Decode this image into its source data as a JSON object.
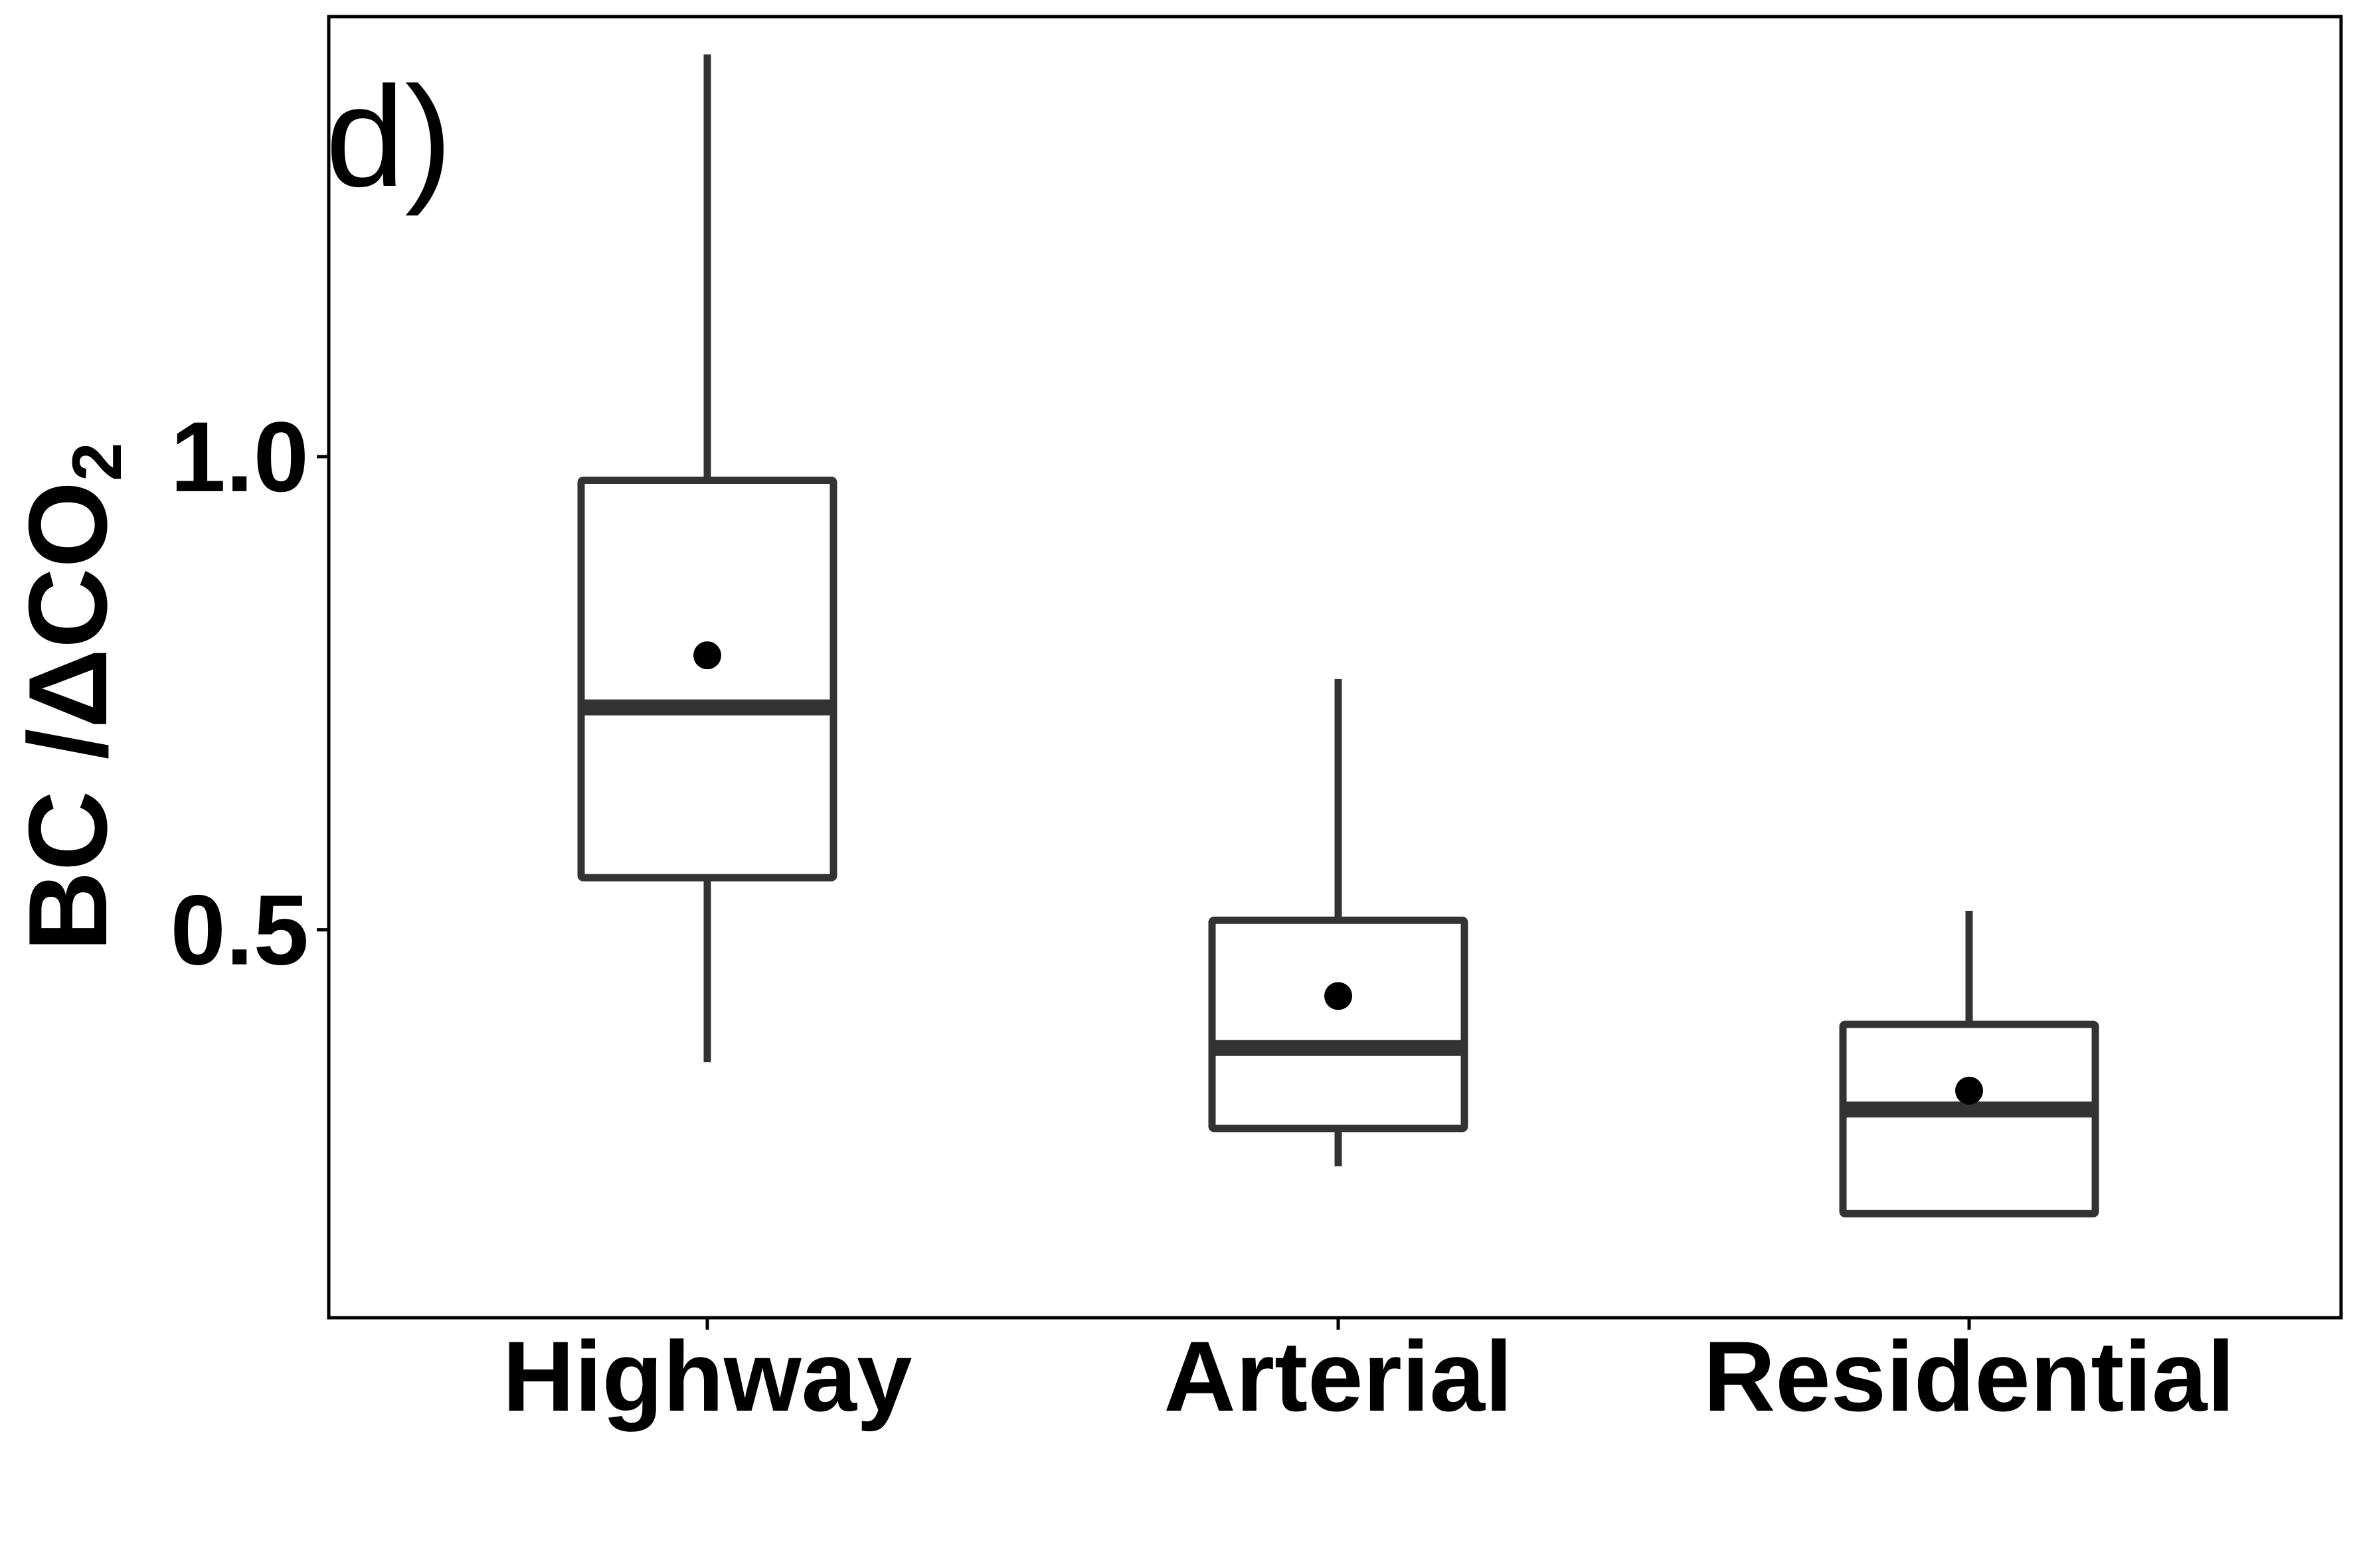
{
  "chart_data": {
    "type": "box",
    "panel_label": "d)",
    "ylabel": {
      "main": "BC /ΔCO",
      "subscript": "2"
    },
    "xlabel": "",
    "categories": [
      "Highway",
      "Arterial",
      "Residential"
    ],
    "y_ticks": [
      {
        "value": 0.5,
        "label": "0.5"
      },
      {
        "value": 1.0,
        "label": "1.0"
      }
    ],
    "ylim": [
      0.09,
      1.465
    ],
    "grid": false,
    "legend": "none",
    "boxes": [
      {
        "category": "Highway",
        "whisker_low": 0.36,
        "q1": 0.555,
        "median": 0.735,
        "q3": 0.975,
        "whisker_high": 1.425,
        "mean": 0.79
      },
      {
        "category": "Arterial",
        "whisker_low": 0.25,
        "q1": 0.29,
        "median": 0.375,
        "q3": 0.51,
        "whisker_high": 0.765,
        "mean": 0.43
      },
      {
        "category": "Residential",
        "whisker_low": 0.2,
        "q1": 0.2,
        "median": 0.31,
        "q3": 0.4,
        "whisker_high": 0.52,
        "mean": 0.33
      }
    ],
    "colors": {
      "box_stroke": "#333333",
      "median": "#333333",
      "mean_point": "#000000",
      "axis": "#000000",
      "background": "#ffffff"
    }
  }
}
